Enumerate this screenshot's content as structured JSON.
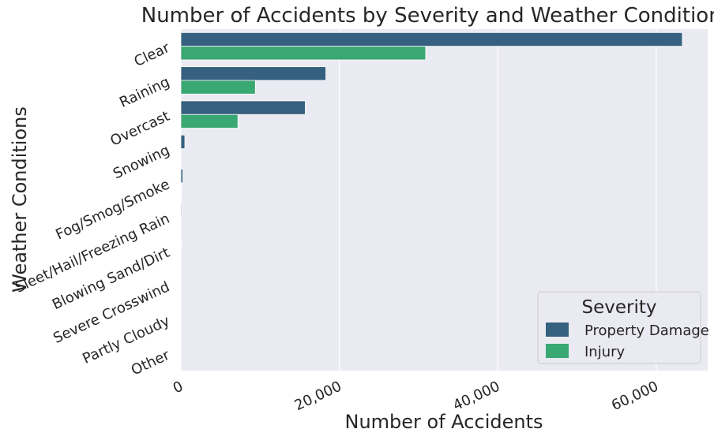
{
  "chart_data": {
    "type": "bar",
    "orientation": "horizontal",
    "title": "Number of Accidents by Severity and Weather Conditions",
    "xlabel": "Number of Accidents",
    "ylabel": "Weather Conditions",
    "categories": [
      "Clear",
      "Raining",
      "Overcast",
      "Snowing",
      "Fog/Smog/Smoke",
      "Sleet/Hail/Freezing Rain",
      "Blowing Sand/Dirt",
      "Severe Crosswind",
      "Partly Cloudy",
      "Other"
    ],
    "series": [
      {
        "name": "Property Damage",
        "color": "#35607f",
        "values": [
          63300,
          18300,
          15700,
          500,
          250,
          100,
          50,
          30,
          10,
          20
        ]
      },
      {
        "name": "Injury",
        "color": "#3aa873",
        "values": [
          30900,
          9400,
          7200,
          80,
          60,
          30,
          10,
          10,
          5,
          10
        ]
      }
    ],
    "xticks": [
      0,
      20000,
      40000,
      60000
    ],
    "xtick_labels": [
      "0",
      "20,000",
      "40,000",
      "60,000"
    ],
    "xlim": [
      0,
      66500
    ],
    "grid": true,
    "legend": {
      "title": "Severity",
      "position": "bottom-right"
    }
  }
}
